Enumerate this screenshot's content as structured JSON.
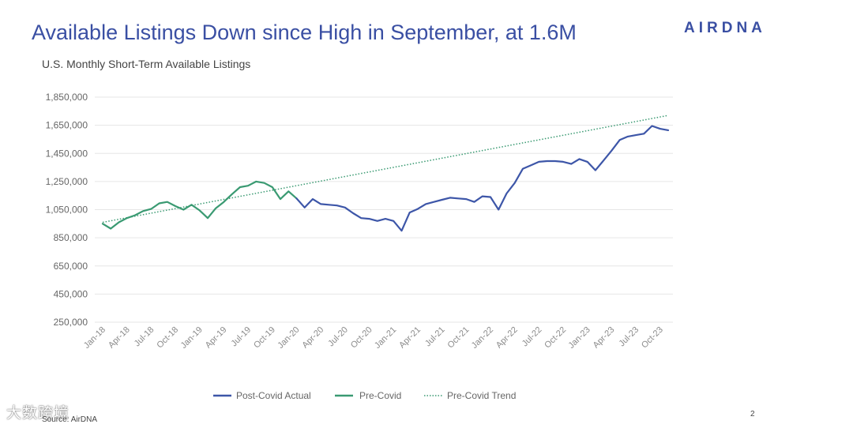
{
  "header": {
    "title": "Available Listings Down since High in September, at 1.6M",
    "subtitle": "U.S. Monthly Short-Term Available Listings",
    "logo_text": "AIRDNA"
  },
  "footer": {
    "source": "Source: AirDNA",
    "page_number": "2",
    "watermark": "大数跨境"
  },
  "colors": {
    "title": "#3a4fa3",
    "post_covid": "#3d56a8",
    "pre_covid": "#3a9a72",
    "trend": "#3a9a72",
    "grid": "#e6e6e6"
  },
  "chart_data": {
    "type": "line",
    "title": "U.S. Monthly Short-Term Available Listings",
    "xlabel": "",
    "ylabel": "",
    "ylim": [
      250000,
      1850000
    ],
    "yticks": [
      250000,
      450000,
      650000,
      850000,
      1050000,
      1250000,
      1450000,
      1650000,
      1850000
    ],
    "ytick_labels": [
      "250,000",
      "450,000",
      "650,000",
      "850,000",
      "1,050,000",
      "1,250,000",
      "1,450,000",
      "1,650,000",
      "1,850,000"
    ],
    "grid": true,
    "legend_position": "bottom",
    "x_labels": [
      "Jan-18",
      "Apr-18",
      "Jul-18",
      "Oct-18",
      "Jan-19",
      "Apr-19",
      "Jul-19",
      "Oct-19",
      "Jan-20",
      "Apr-20",
      "Jul-20",
      "Oct-20",
      "Jan-21",
      "Apr-21",
      "Jul-21",
      "Oct-21",
      "Jan-22",
      "Apr-22",
      "Jul-22",
      "Oct-22",
      "Jan-23",
      "Apr-23",
      "Jul-23",
      "Oct-23"
    ],
    "month_count": 71,
    "series": [
      {
        "name": "Pre-Covid",
        "style": "solid",
        "start_index": 0,
        "values": [
          950000,
          915000,
          960000,
          990000,
          1010000,
          1040000,
          1055000,
          1095000,
          1105000,
          1075000,
          1050000,
          1085000,
          1045000,
          990000,
          1060000,
          1105000,
          1160000,
          1210000,
          1220000,
          1250000,
          1240000,
          1210000,
          1125000,
          1180000,
          1130000
        ]
      },
      {
        "name": "Post-Covid Actual",
        "style": "solid",
        "start_index": 24,
        "values": [
          1130000,
          1065000,
          1125000,
          1090000,
          1085000,
          1080000,
          1065000,
          1025000,
          990000,
          985000,
          970000,
          985000,
          970000,
          900000,
          1030000,
          1055000,
          1090000,
          1105000,
          1120000,
          1135000,
          1130000,
          1125000,
          1105000,
          1145000,
          1140000,
          1050000,
          1165000,
          1240000,
          1340000,
          1365000,
          1390000,
          1395000,
          1395000,
          1390000,
          1375000,
          1410000,
          1390000,
          1330000,
          1400000,
          1470000,
          1545000,
          1570000,
          1580000,
          1590000,
          1645000,
          1625000,
          1615000
        ]
      },
      {
        "name": "Pre-Covid Trend",
        "style": "dotted",
        "start_index": 0,
        "end_index": 70,
        "start_value": 960000,
        "end_value": 1720000
      }
    ],
    "legend": [
      "Post-Covid Actual",
      "Pre-Covid",
      "Pre-Covid Trend"
    ]
  }
}
